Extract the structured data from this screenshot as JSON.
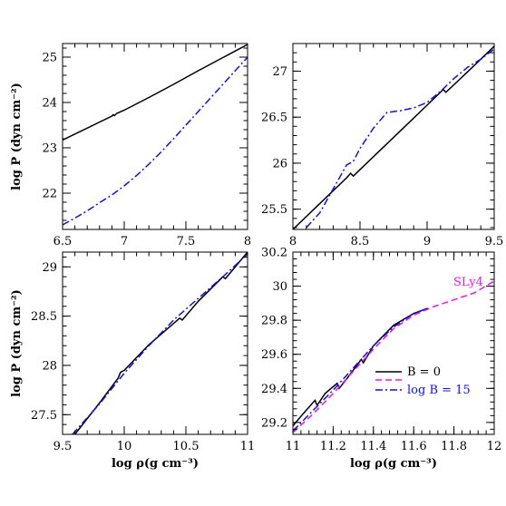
{
  "chart_data": [
    {
      "type": "line",
      "xlim": [
        6.5,
        8.0
      ],
      "ylim": [
        21.2,
        25.3
      ],
      "xticks": [
        "6.5",
        "7",
        "7.5",
        "8"
      ],
      "yticks": [
        "22",
        "23",
        "24",
        "25"
      ],
      "xlabel": "",
      "ylabel": "log P (dyn cm⁻²)",
      "series": [
        {
          "color": "#000000",
          "dash": "solid",
          "x": [
            6.5,
            6.9,
            6.91,
            6.92,
            6.94,
            7.0,
            7.2,
            7.4,
            7.6,
            7.8,
            8.0
          ],
          "y": [
            23.17,
            23.7,
            23.73,
            23.71,
            23.76,
            23.83,
            24.11,
            24.4,
            24.7,
            24.99,
            25.28
          ]
        },
        {
          "color": "#1010ee",
          "dash": "dashdot",
          "x": [
            6.5,
            6.6,
            6.7,
            6.8,
            6.9,
            7.0,
            7.1,
            7.2,
            7.3,
            7.4,
            7.5,
            7.6,
            7.7,
            7.8,
            7.9,
            8.0
          ],
          "y": [
            21.3,
            21.45,
            21.61,
            21.79,
            21.96,
            22.16,
            22.39,
            22.64,
            22.91,
            23.2,
            23.5,
            23.8,
            24.1,
            24.4,
            24.7,
            25.0
          ]
        }
      ]
    },
    {
      "type": "line",
      "xlim": [
        8.0,
        9.5
      ],
      "ylim": [
        25.28,
        27.3
      ],
      "xticks": [
        "8",
        "8.5",
        "9",
        "9.5"
      ],
      "yticks": [
        "25.5",
        "26",
        "26.5",
        "27"
      ],
      "xlabel": "",
      "ylabel": "",
      "series": [
        {
          "color": "#000000",
          "dash": "solid",
          "x": [
            8.0,
            8.2,
            8.4,
            8.43,
            8.45,
            8.6,
            8.8,
            9.0,
            9.12,
            9.14,
            9.3,
            9.5
          ],
          "y": [
            25.28,
            25.56,
            25.84,
            25.89,
            25.86,
            26.07,
            26.35,
            26.63,
            26.8,
            26.77,
            26.99,
            27.27
          ]
        },
        {
          "color": "#1010ee",
          "dash": "dashdot",
          "x": [
            8.1,
            8.2,
            8.3,
            8.4,
            8.45,
            8.5,
            8.6,
            8.7,
            8.8,
            8.9,
            9.0,
            9.1,
            9.2,
            9.3,
            9.4,
            9.5
          ],
          "y": [
            25.3,
            25.46,
            25.72,
            25.98,
            26.02,
            26.16,
            26.38,
            26.55,
            26.57,
            26.6,
            26.66,
            26.78,
            26.92,
            27.04,
            27.13,
            27.24
          ]
        }
      ]
    },
    {
      "type": "line",
      "xlim": [
        9.5,
        11.0
      ],
      "ylim": [
        27.3,
        29.15
      ],
      "xticks": [
        "9.5",
        "10",
        "10.5",
        "11"
      ],
      "yticks": [
        "27.5",
        "28",
        "28.5",
        "29"
      ],
      "xlabel": "log ρ(g cm⁻³)",
      "ylabel": "log P (dyn cm⁻²)",
      "series": [
        {
          "color": "#000000",
          "dash": "solid",
          "x": [
            9.6,
            9.8,
            9.95,
            9.97,
            10.0,
            10.2,
            10.45,
            10.47,
            10.6,
            10.8,
            10.82,
            11.0
          ],
          "y": [
            27.3,
            27.62,
            27.87,
            27.93,
            27.95,
            28.21,
            28.48,
            28.46,
            28.65,
            28.9,
            28.88,
            29.15
          ]
        },
        {
          "color": "#1010ee",
          "dash": "dashdot",
          "x": [
            9.58,
            9.8,
            10.0,
            10.2,
            10.4,
            10.6,
            10.8,
            11.0
          ],
          "y": [
            27.3,
            27.61,
            27.92,
            28.2,
            28.46,
            28.68,
            28.9,
            29.13
          ]
        }
      ]
    },
    {
      "type": "line",
      "xlim": [
        11.0,
        12.0
      ],
      "ylim": [
        29.13,
        30.2
      ],
      "xticks": [
        "11",
        "11.2",
        "11.4",
        "11.6",
        "11.8",
        "12"
      ],
      "yticks": [
        "29.2",
        "29.4",
        "29.6",
        "29.8",
        "30",
        "30.2"
      ],
      "xlabel": "log ρ(g cm⁻³)",
      "ylabel": "",
      "annotation": "SLy4",
      "legend": {
        "placement": "lower-right",
        "entries": [
          {
            "label": "B = 0",
            "color": "#000000",
            "dash": "solid"
          },
          {
            "label": "",
            "color": "#ee10ee",
            "dash": "dashed"
          },
          {
            "label": "log B = 15",
            "color": "#1010ee",
            "dash": "dashdot"
          }
        ]
      },
      "series": [
        {
          "color": "#000000",
          "dash": "solid",
          "x": [
            11.0,
            11.05,
            11.11,
            11.12,
            11.16,
            11.22,
            11.23,
            11.27,
            11.34,
            11.35,
            11.4,
            11.5,
            11.6,
            11.67
          ],
          "y": [
            29.18,
            29.25,
            29.33,
            29.3,
            29.37,
            29.43,
            29.4,
            29.46,
            29.57,
            29.55,
            29.65,
            29.77,
            29.84,
            29.87
          ]
        },
        {
          "color": "#1010ee",
          "dash": "dashdot",
          "x": [
            11.0,
            11.1,
            11.2,
            11.3,
            11.4,
            11.5,
            11.6,
            11.67
          ],
          "y": [
            29.15,
            29.27,
            29.39,
            29.52,
            29.65,
            29.76,
            29.84,
            29.87
          ]
        },
        {
          "color": "#ee10ee",
          "dash": "dashed",
          "x": [
            11.0,
            11.1,
            11.2,
            11.3,
            11.4,
            11.5,
            11.6,
            11.7,
            11.8,
            11.9,
            12.0
          ],
          "y": [
            29.14,
            29.25,
            29.37,
            29.5,
            29.63,
            29.75,
            29.83,
            29.88,
            29.92,
            29.96,
            30.03
          ]
        }
      ]
    }
  ]
}
